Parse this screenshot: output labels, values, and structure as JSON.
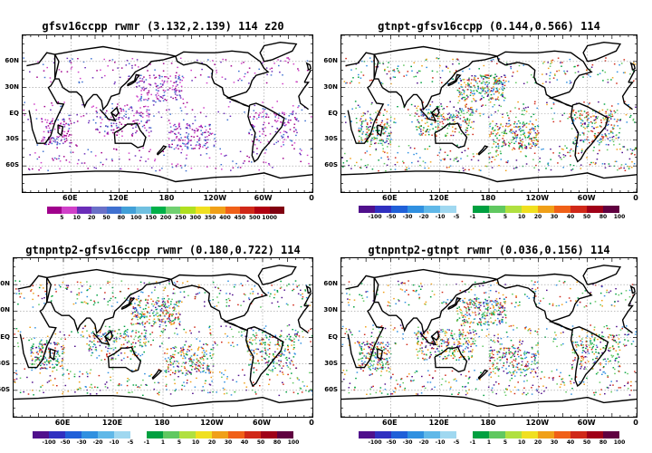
{
  "panels": [
    {
      "title": "gfsv16ccpp rwmr (3.132,2.139) 114 z20",
      "lat_labels": [
        "60N",
        "30N",
        "EQ",
        "30S",
        "60S"
      ],
      "lon_labels": [
        "60E",
        "120E",
        "180",
        "120W",
        "60W",
        "0"
      ],
      "colorbar": {
        "colors": [
          "#a0008c",
          "#d040c8",
          "#6a2cb8",
          "#6a70c8",
          "#3f70d0",
          "#42a0d8",
          "#70c0e0",
          "#00b048",
          "#70d070",
          "#b0e020",
          "#f0e020",
          "#f0a018",
          "#f06018",
          "#d02818",
          "#b00010",
          "#800010"
        ],
        "labels": [
          "5",
          "10",
          "20",
          "50",
          "80",
          "100",
          "150",
          "200",
          "250",
          "300",
          "350",
          "400",
          "450",
          "500",
          "1000"
        ]
      },
      "speckle_colors": [
        "#a0008c",
        "#d040c8",
        "#6a2cb8",
        "#3f70d0"
      ]
    },
    {
      "title": "gtnpt-gfsv16ccpp (0.144,0.566) 114",
      "lat_labels": [
        "60N",
        "30N",
        "EQ",
        "30S",
        "60S"
      ],
      "lon_labels": [
        "60E",
        "120E",
        "180",
        "120W",
        "60W",
        "0"
      ],
      "colorbar": {
        "colors": [
          "#50108c",
          "#3030c0",
          "#2060d8",
          "#3090e0",
          "#60b8e8",
          "#a0d8f0",
          "#ffffff",
          "#00a040",
          "#60c860",
          "#b0e040",
          "#f0e020",
          "#f0a018",
          "#f06018",
          "#d02818",
          "#a00018",
          "#600040"
        ],
        "labels": [
          "-100",
          "-50",
          "-30",
          "-20",
          "-10",
          "-5",
          "-1",
          "1",
          "5",
          "10",
          "20",
          "30",
          "40",
          "50",
          "80",
          "100"
        ]
      },
      "speckle_colors": [
        "#00a040",
        "#60c860",
        "#3090e0",
        "#f0a018",
        "#d02818",
        "#50108c"
      ]
    },
    {
      "title": "gtnpntp2-gfsv16ccpp rwmr (0.180,0.722) 114",
      "lat_labels": [
        "60N",
        "30N",
        "EQ",
        "30S",
        "60S"
      ],
      "lon_labels": [
        "60E",
        "120E",
        "180",
        "120W",
        "60W",
        "0"
      ],
      "colorbar": {
        "colors": [
          "#50108c",
          "#3030c0",
          "#2060d8",
          "#3090e0",
          "#60b8e8",
          "#a0d8f0",
          "#ffffff",
          "#00a040",
          "#60c860",
          "#b0e040",
          "#f0e020",
          "#f0a018",
          "#f06018",
          "#d02818",
          "#a00018",
          "#600040"
        ],
        "labels": [
          "-100",
          "-50",
          "-30",
          "-20",
          "-10",
          "-5",
          "-1",
          "1",
          "5",
          "10",
          "20",
          "30",
          "40",
          "50",
          "80",
          "100"
        ]
      },
      "speckle_colors": [
        "#00a040",
        "#60c860",
        "#3090e0",
        "#f0a018",
        "#d02818",
        "#50108c"
      ]
    },
    {
      "title": "gtnpntp2-gtnpt rwmr (0.036,0.156) 114",
      "lat_labels": [
        "60N",
        "30N",
        "EQ",
        "30S",
        "60S"
      ],
      "lon_labels": [
        "60E",
        "120E",
        "180",
        "120W",
        "60W",
        "0"
      ],
      "colorbar": {
        "colors": [
          "#50108c",
          "#3030c0",
          "#2060d8",
          "#3090e0",
          "#60b8e8",
          "#a0d8f0",
          "#ffffff",
          "#00a040",
          "#60c860",
          "#b0e040",
          "#f0e020",
          "#f0a018",
          "#f06018",
          "#d02818",
          "#a00018",
          "#600040"
        ],
        "labels": [
          "-100",
          "-50",
          "-30",
          "-20",
          "-10",
          "-5",
          "-1",
          "1",
          "5",
          "10",
          "20",
          "30",
          "40",
          "50",
          "80",
          "100"
        ]
      },
      "speckle_colors": [
        "#00a040",
        "#60c860",
        "#3090e0",
        "#f0a018",
        "#d02818",
        "#50108c"
      ]
    }
  ]
}
